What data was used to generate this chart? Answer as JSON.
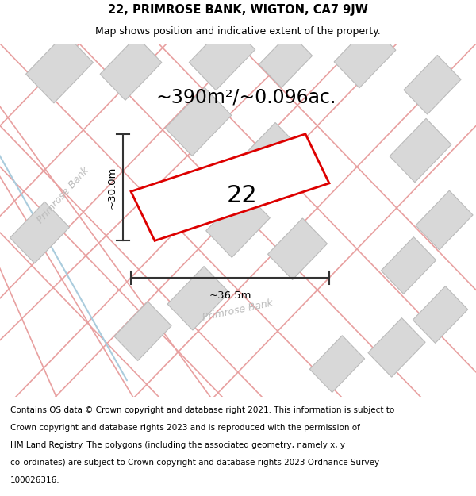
{
  "title": "22, PRIMROSE BANK, WIGTON, CA7 9JW",
  "subtitle": "Map shows position and indicative extent of the property.",
  "area_text": "~390m²/~0.096ac.",
  "label_22": "22",
  "dim_width": "~36.5m",
  "dim_height": "~30.0m",
  "road_label_left": "Primrose Bank",
  "road_label_bottom": "Primrose Bank",
  "footer_lines": [
    "Contains OS data © Crown copyright and database right 2021. This information is subject to",
    "Crown copyright and database rights 2023 and is reproduced with the permission of",
    "HM Land Registry. The polygons (including the associated geometry, namely x, y",
    "co-ordinates) are subject to Crown copyright and database rights 2023 Ordnance Survey",
    "100026316."
  ],
  "bg_white": "#ffffff",
  "map_bg": "#f7f7f5",
  "plot_color": "#dd0000",
  "building_fill": "#d8d8d8",
  "building_edge": "#bbbbbb",
  "road_line_color": "#e8a0a0",
  "road_outline_color": "#cccccc",
  "dim_color": "#333333",
  "road_label_color": "#bbbbbb",
  "blue_line_color": "#aaccdd",
  "title_fontsize": 10.5,
  "subtitle_fontsize": 9,
  "area_fontsize": 17,
  "number_fontsize": 22,
  "dim_fontsize": 9.5,
  "road_fontsize": 9,
  "footer_fontsize": 7.5
}
